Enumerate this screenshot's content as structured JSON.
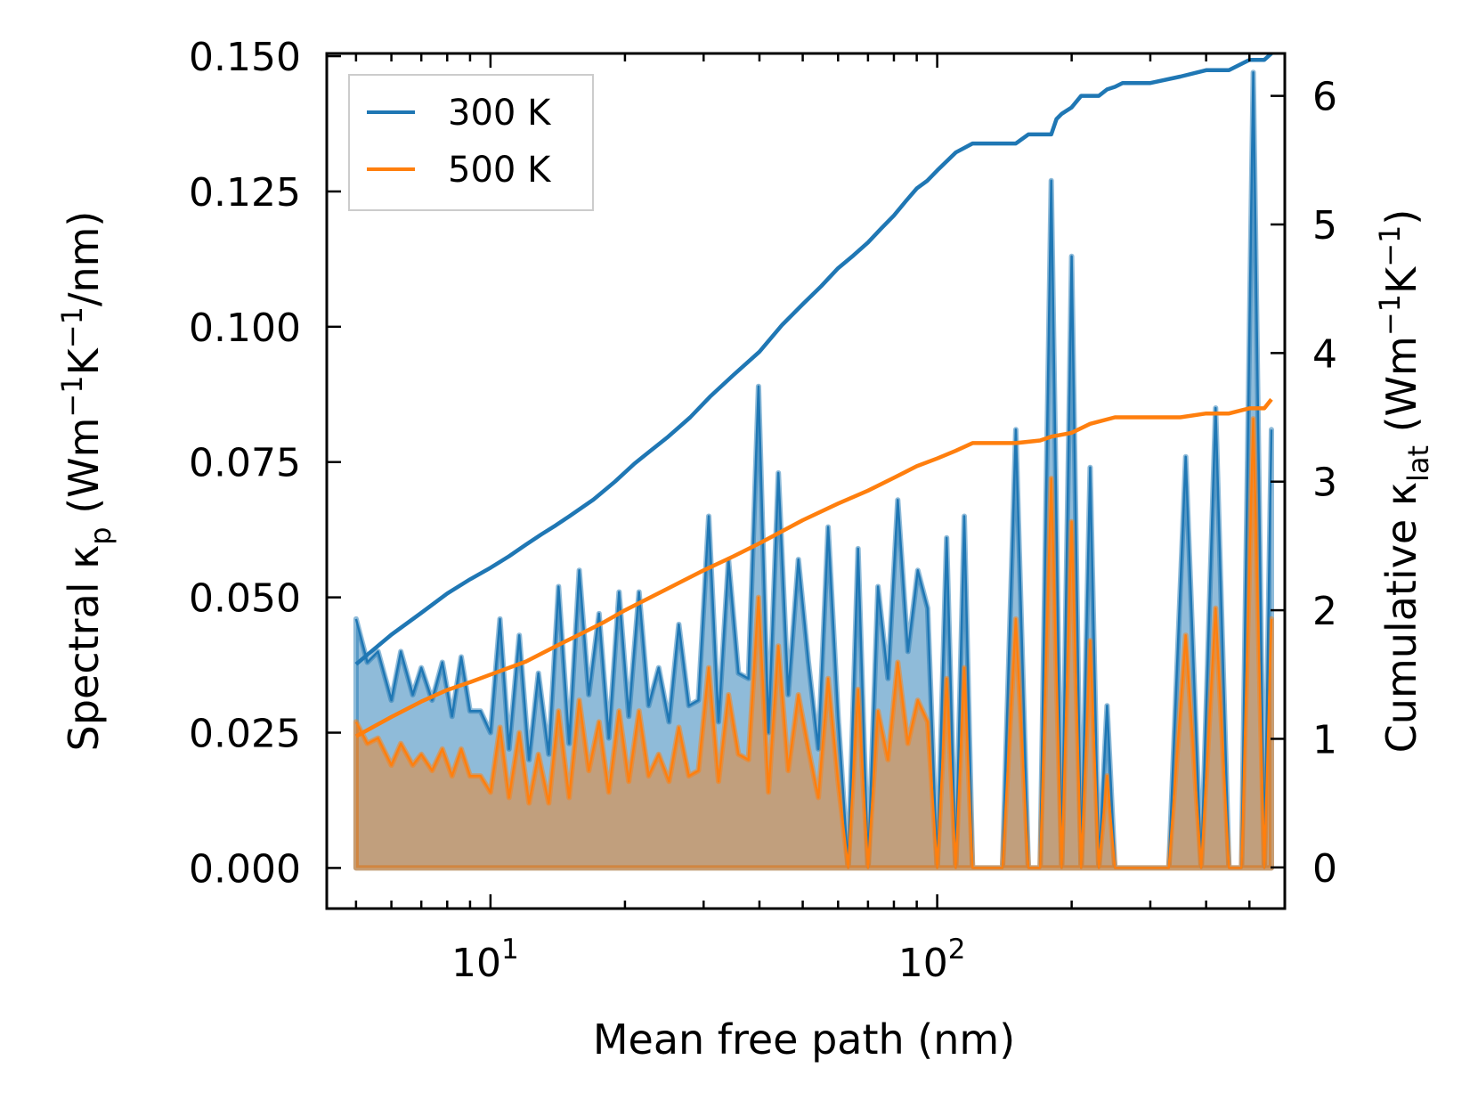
{
  "chart_data": {
    "type": "line",
    "xlabel": "Mean free path (nm)",
    "x_scale": "log",
    "xlim": [
      4.3,
      600
    ],
    "x_tick_labels": [
      {
        "value": 10,
        "base": "10",
        "exp": "1"
      },
      {
        "value": 100,
        "base": "10",
        "exp": "2"
      }
    ],
    "left_axis": {
      "label": {
        "pre": "Spectral κ",
        "sub": "p",
        "mid": " (Wm",
        "sup1": "−1",
        "mid2": "K",
        "sup2": "−1",
        "post": "/nm)"
      },
      "ylim": [
        -0.0075,
        0.1505
      ],
      "ticks": [
        0,
        0.025,
        0.05,
        0.075,
        0.1,
        0.125,
        0.15
      ],
      "tick_labels": [
        "0.000",
        "0.025",
        "0.050",
        "0.075",
        "0.100",
        "0.125",
        "0.150"
      ]
    },
    "right_axis": {
      "label": {
        "pre": "Cumulative κ",
        "sub": "lat",
        "mid": " (Wm",
        "sup1": "−1",
        "mid2": "K",
        "sup2": "−1",
        "post": ")"
      },
      "ylim": [
        -0.32,
        6.33
      ],
      "ticks": [
        0,
        1,
        2,
        3,
        4,
        5,
        6
      ],
      "tick_labels": [
        "0",
        "1",
        "2",
        "3",
        "4",
        "5",
        "6"
      ]
    },
    "legend": {
      "position": "top-left",
      "entries": [
        {
          "label": "300 K",
          "color": "#1f77b4"
        },
        {
          "label": "500 K",
          "color": "#ff7f0e"
        }
      ]
    },
    "spectral_series": [
      {
        "name": "300 K",
        "color": "#1f77b4",
        "fill": "#1f77b4",
        "axis": "left",
        "x": [
          5.0,
          5.3,
          5.6,
          6.0,
          6.3,
          6.7,
          7.0,
          7.4,
          7.8,
          8.2,
          8.6,
          9.0,
          9.5,
          10.0,
          10.5,
          11.0,
          11.6,
          12.2,
          12.8,
          13.5,
          14.2,
          15.0,
          15.8,
          16.6,
          17.5,
          18.4,
          19.4,
          20.4,
          21.5,
          22.6,
          23.8,
          25.1,
          26.4,
          27.8,
          29.2,
          30.8,
          32.4,
          34.1,
          35.9,
          37.8,
          39.8,
          41.9,
          44.1,
          46.4,
          48.9,
          51.5,
          54.2,
          57.0,
          60.0,
          63.2,
          66.5,
          70.0,
          73.7,
          77.6,
          81.6,
          86.0,
          90.5,
          95.2,
          100.0,
          105.0,
          110.0,
          115.0,
          120.0,
          130.0,
          140.0,
          150.0,
          160.0,
          170.0,
          180.0,
          190.0,
          200.0,
          210.0,
          220.0,
          230.0,
          240.0,
          250.0,
          260.0,
          280.0,
          300.0,
          330.0,
          360.0,
          390.0,
          420.0,
          450.0,
          480.0,
          510.0,
          540.0,
          560.0
        ],
        "y": [
          0.046,
          0.038,
          0.04,
          0.031,
          0.04,
          0.032,
          0.037,
          0.031,
          0.038,
          0.028,
          0.039,
          0.029,
          0.029,
          0.025,
          0.046,
          0.022,
          0.043,
          0.02,
          0.036,
          0.021,
          0.052,
          0.023,
          0.055,
          0.032,
          0.047,
          0.024,
          0.051,
          0.028,
          0.051,
          0.03,
          0.037,
          0.027,
          0.045,
          0.03,
          0.031,
          0.065,
          0.027,
          0.057,
          0.036,
          0.035,
          0.089,
          0.025,
          0.073,
          0.032,
          0.057,
          0.038,
          0.022,
          0.063,
          0.028,
          0.0,
          0.059,
          0.0,
          0.052,
          0.035,
          0.068,
          0.04,
          0.055,
          0.048,
          0.0,
          0.061,
          0.0,
          0.065,
          0.0,
          0.0,
          0.0,
          0.081,
          0.0,
          0.0,
          0.127,
          0.0,
          0.113,
          0.0,
          0.074,
          0.0,
          0.03,
          0.0,
          0.0,
          0.0,
          0.0,
          0.0,
          0.076,
          0.0,
          0.085,
          0.0,
          0.0,
          0.147,
          0.0,
          0.081
        ]
      },
      {
        "name": "500 K",
        "color": "#ff7f0e",
        "fill": "#ff7f0e",
        "axis": "left",
        "x": [
          5.0,
          5.3,
          5.6,
          6.0,
          6.3,
          6.7,
          7.0,
          7.4,
          7.8,
          8.2,
          8.6,
          9.0,
          9.5,
          10.0,
          10.5,
          11.0,
          11.6,
          12.2,
          12.8,
          13.5,
          14.2,
          15.0,
          15.8,
          16.6,
          17.5,
          18.4,
          19.4,
          20.4,
          21.5,
          22.6,
          23.8,
          25.1,
          26.4,
          27.8,
          29.2,
          30.8,
          32.4,
          34.1,
          35.9,
          37.8,
          39.8,
          41.9,
          44.1,
          46.4,
          48.9,
          51.5,
          54.2,
          57.0,
          60.0,
          63.2,
          66.5,
          70.0,
          73.7,
          77.6,
          81.6,
          86.0,
          90.5,
          95.2,
          100.0,
          105.0,
          110.0,
          115.0,
          120.0,
          130.0,
          140.0,
          150.0,
          160.0,
          170.0,
          180.0,
          190.0,
          200.0,
          210.0,
          220.0,
          230.0,
          240.0,
          250.0,
          260.0,
          280.0,
          300.0,
          330.0,
          360.0,
          390.0,
          420.0,
          450.0,
          480.0,
          510.0,
          540.0,
          560.0
        ],
        "y": [
          0.027,
          0.023,
          0.024,
          0.019,
          0.023,
          0.019,
          0.021,
          0.018,
          0.022,
          0.017,
          0.022,
          0.017,
          0.017,
          0.014,
          0.026,
          0.013,
          0.025,
          0.012,
          0.021,
          0.012,
          0.029,
          0.013,
          0.031,
          0.018,
          0.027,
          0.014,
          0.029,
          0.016,
          0.029,
          0.017,
          0.021,
          0.016,
          0.026,
          0.017,
          0.018,
          0.037,
          0.016,
          0.032,
          0.021,
          0.02,
          0.05,
          0.014,
          0.041,
          0.018,
          0.032,
          0.022,
          0.013,
          0.035,
          0.016,
          0.0,
          0.033,
          0.0,
          0.029,
          0.02,
          0.038,
          0.023,
          0.031,
          0.027,
          0.0,
          0.035,
          0.0,
          0.037,
          0.0,
          0.0,
          0.0,
          0.046,
          0.0,
          0.0,
          0.072,
          0.0,
          0.064,
          0.0,
          0.042,
          0.0,
          0.017,
          0.0,
          0.0,
          0.0,
          0.0,
          0.0,
          0.043,
          0.0,
          0.048,
          0.0,
          0.0,
          0.083,
          0.0,
          0.046
        ]
      }
    ],
    "cumulative_series": [
      {
        "name": "300 K",
        "color": "#1f77b4",
        "axis": "right",
        "x": [
          5.0,
          6.0,
          7.0,
          8.0,
          9.0,
          10.0,
          11.0,
          12.0,
          13.0,
          14.0,
          15.0,
          17.0,
          19.0,
          21.0,
          23.0,
          25.0,
          28.0,
          31.0,
          35.0,
          40.0,
          45.0,
          50.0,
          55.0,
          60.0,
          65.0,
          70.0,
          75.0,
          80.0,
          85.0,
          90.0,
          95.0,
          100.0,
          110.0,
          120.0,
          130.0,
          150.0,
          160.0,
          180.0,
          185.0,
          190.0,
          200.0,
          210.0,
          220.0,
          230.0,
          240.0,
          250.0,
          260.0,
          280.0,
          300.0,
          350.0,
          400.0,
          450.0,
          500.0,
          540.0,
          560.0
        ],
        "y": [
          1.58,
          1.81,
          1.98,
          2.13,
          2.24,
          2.33,
          2.42,
          2.51,
          2.59,
          2.66,
          2.73,
          2.86,
          3.0,
          3.14,
          3.25,
          3.35,
          3.5,
          3.66,
          3.83,
          4.01,
          4.22,
          4.38,
          4.52,
          4.66,
          4.76,
          4.86,
          4.97,
          5.07,
          5.18,
          5.28,
          5.34,
          5.42,
          5.56,
          5.63,
          5.63,
          5.63,
          5.7,
          5.7,
          5.82,
          5.86,
          5.91,
          6.0,
          6.0,
          6.0,
          6.05,
          6.07,
          6.1,
          6.1,
          6.1,
          6.15,
          6.2,
          6.2,
          6.28,
          6.28,
          6.33
        ]
      },
      {
        "name": "500 K",
        "color": "#ff7f0e",
        "axis": "right",
        "x": [
          5.0,
          6.0,
          7.0,
          8.0,
          9.0,
          10.0,
          12.0,
          14.0,
          16.0,
          18.0,
          20.0,
          25.0,
          30.0,
          35.0,
          40.0,
          50.0,
          60.0,
          70.0,
          80.0,
          90.0,
          100.0,
          110.0,
          120.0,
          150.0,
          170.0,
          180.0,
          200.0,
          220.0,
          250.0,
          300.0,
          350.0,
          400.0,
          450.0,
          500.0,
          540.0,
          560.0
        ],
        "y": [
          1.02,
          1.17,
          1.29,
          1.38,
          1.44,
          1.5,
          1.6,
          1.72,
          1.82,
          1.91,
          2.0,
          2.17,
          2.31,
          2.42,
          2.52,
          2.7,
          2.83,
          2.93,
          3.03,
          3.12,
          3.18,
          3.24,
          3.3,
          3.3,
          3.32,
          3.35,
          3.38,
          3.45,
          3.5,
          3.5,
          3.5,
          3.53,
          3.53,
          3.57,
          3.57,
          3.64
        ]
      }
    ]
  }
}
